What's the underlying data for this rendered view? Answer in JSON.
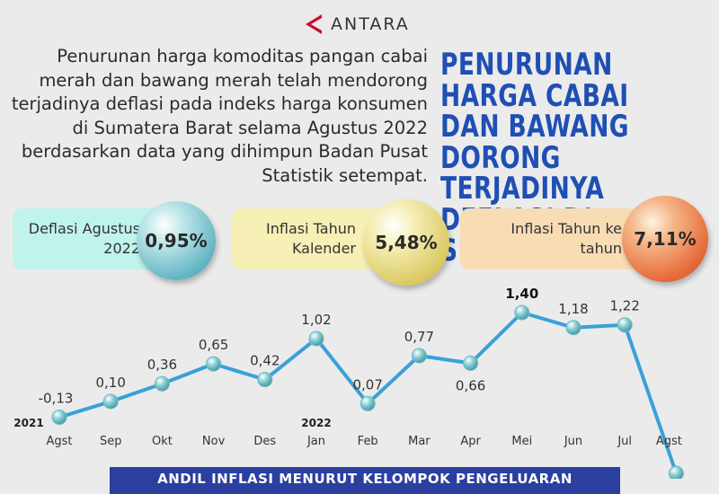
{
  "brand": {
    "name": "ANTARA",
    "color": "#c8102e"
  },
  "intro_text": "Penurunan harga komoditas pangan cabai merah dan bawang merah telah mendorong terjadinya deflasi pada indeks harga konsumen di Sumatera Barat selama Agustus 2022 berdasarkan data yang dihimpun Badan Pusat Statistik setempat.",
  "headline": "PENURUNAN HARGA CABAI DAN BAWANG DORONG TERJADINYA DEFLASI DI SUMBAR",
  "stats": [
    {
      "label": "Deflasi Agustus 2022",
      "value": "0,95%",
      "card_color": "#bff3ec",
      "ball_color": "#5fb3c2"
    },
    {
      "label": "Inflasi Tahun Kalender",
      "value": "5,48%",
      "card_color": "#f6f0b6",
      "ball_color": "#d9c85e"
    },
    {
      "label": "Inflasi Tahun ke tahun",
      "value": "7,11%",
      "card_color": "#f8dcb4",
      "ball_color": "#e86d3c"
    }
  ],
  "chart_data": {
    "type": "line",
    "categories": [
      "Agst",
      "Sep",
      "Okt",
      "Nov",
      "Des",
      "Jan",
      "Feb",
      "Mar",
      "Apr",
      "Mei",
      "Jun",
      "Jul",
      "Agst"
    ],
    "year_labels": [
      {
        "index": 0,
        "text": "2021"
      },
      {
        "index": 5,
        "text": "2022"
      }
    ],
    "values": [
      -0.13,
      0.1,
      0.36,
      0.65,
      0.42,
      1.02,
      0.07,
      0.77,
      0.66,
      1.4,
      1.18,
      1.22,
      -0.95
    ],
    "value_labels": [
      "-0,13",
      "0,10",
      "0,36",
      "0,65",
      "0,42",
      "1,02",
      "0,07",
      "0,77",
      "0,66",
      "1,40",
      "1,18",
      "1,22",
      ""
    ],
    "line_color": "#3aa0d8",
    "marker_color": "#8ed3d6",
    "ylim": [
      -0.95,
      1.4
    ]
  },
  "footer_banner": "ANDIL INFLASI MENURUT KELOMPOK PENGELUARAN"
}
